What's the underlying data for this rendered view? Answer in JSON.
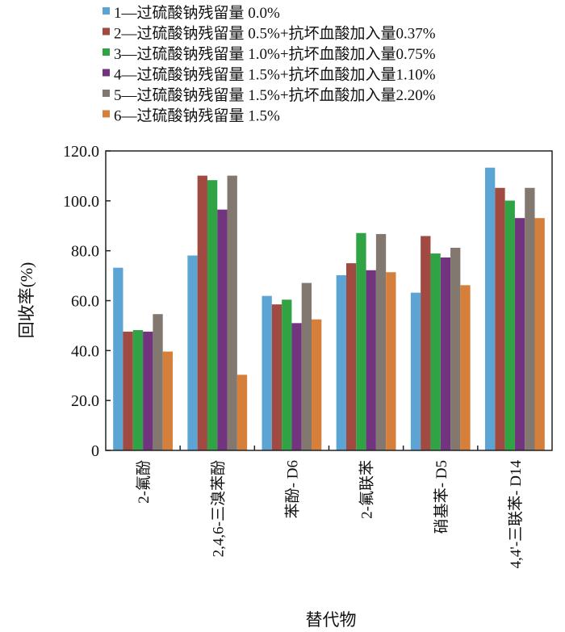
{
  "chart_data": {
    "type": "bar",
    "title": "",
    "xlabel": "替代物",
    "ylabel": "回收率(%)",
    "ylim": [
      0,
      120
    ],
    "yticks": [
      "0",
      "20.0",
      "40.0",
      "60.0",
      "80.0",
      "100.0",
      "120.0"
    ],
    "legend_position": "top",
    "categories": [
      "2-氟酚",
      "2,4,6-三溴苯酚",
      "苯酚- D6",
      "2-氟联苯",
      "硝基苯- D5",
      "4,4'-三联苯- D14"
    ],
    "series": [
      {
        "name": "1—过硫酸钠残留量 0.0%",
        "color": "#5ba4d4",
        "values": [
          73.2,
          78.1,
          61.9,
          70.2,
          63.2,
          113.3
        ]
      },
      {
        "name": "2—过硫酸钠残留量 0.5%+抗坏血酸加入量0.37%",
        "color": "#a04a42",
        "values": [
          47.6,
          110.1,
          58.5,
          75.0,
          85.9,
          105.2
        ]
      },
      {
        "name": "3—过硫酸钠残留量 1.0%+抗坏血酸加入量0.75%",
        "color": "#30a444",
        "values": [
          48.2,
          108.3,
          60.4,
          87.1,
          78.9,
          100.1
        ]
      },
      {
        "name": "4—过硫酸钠残留量 1.5%+抗坏血酸加入量1.10%",
        "color": "#72347e",
        "values": [
          47.6,
          96.5,
          51.0,
          72.2,
          77.3,
          93.1
        ]
      },
      {
        "name": "5—过硫酸钠残留量 1.5%+抗坏血酸加入量2.20%",
        "color": "#837870",
        "values": [
          54.6,
          110.1,
          67.1,
          86.7,
          81.2,
          105.2
        ]
      },
      {
        "name": "6—过硫酸钠残留量 1.5%",
        "color": "#d57f3b",
        "values": [
          39.6,
          30.3,
          52.5,
          71.4,
          66.2,
          93.1
        ]
      }
    ]
  }
}
